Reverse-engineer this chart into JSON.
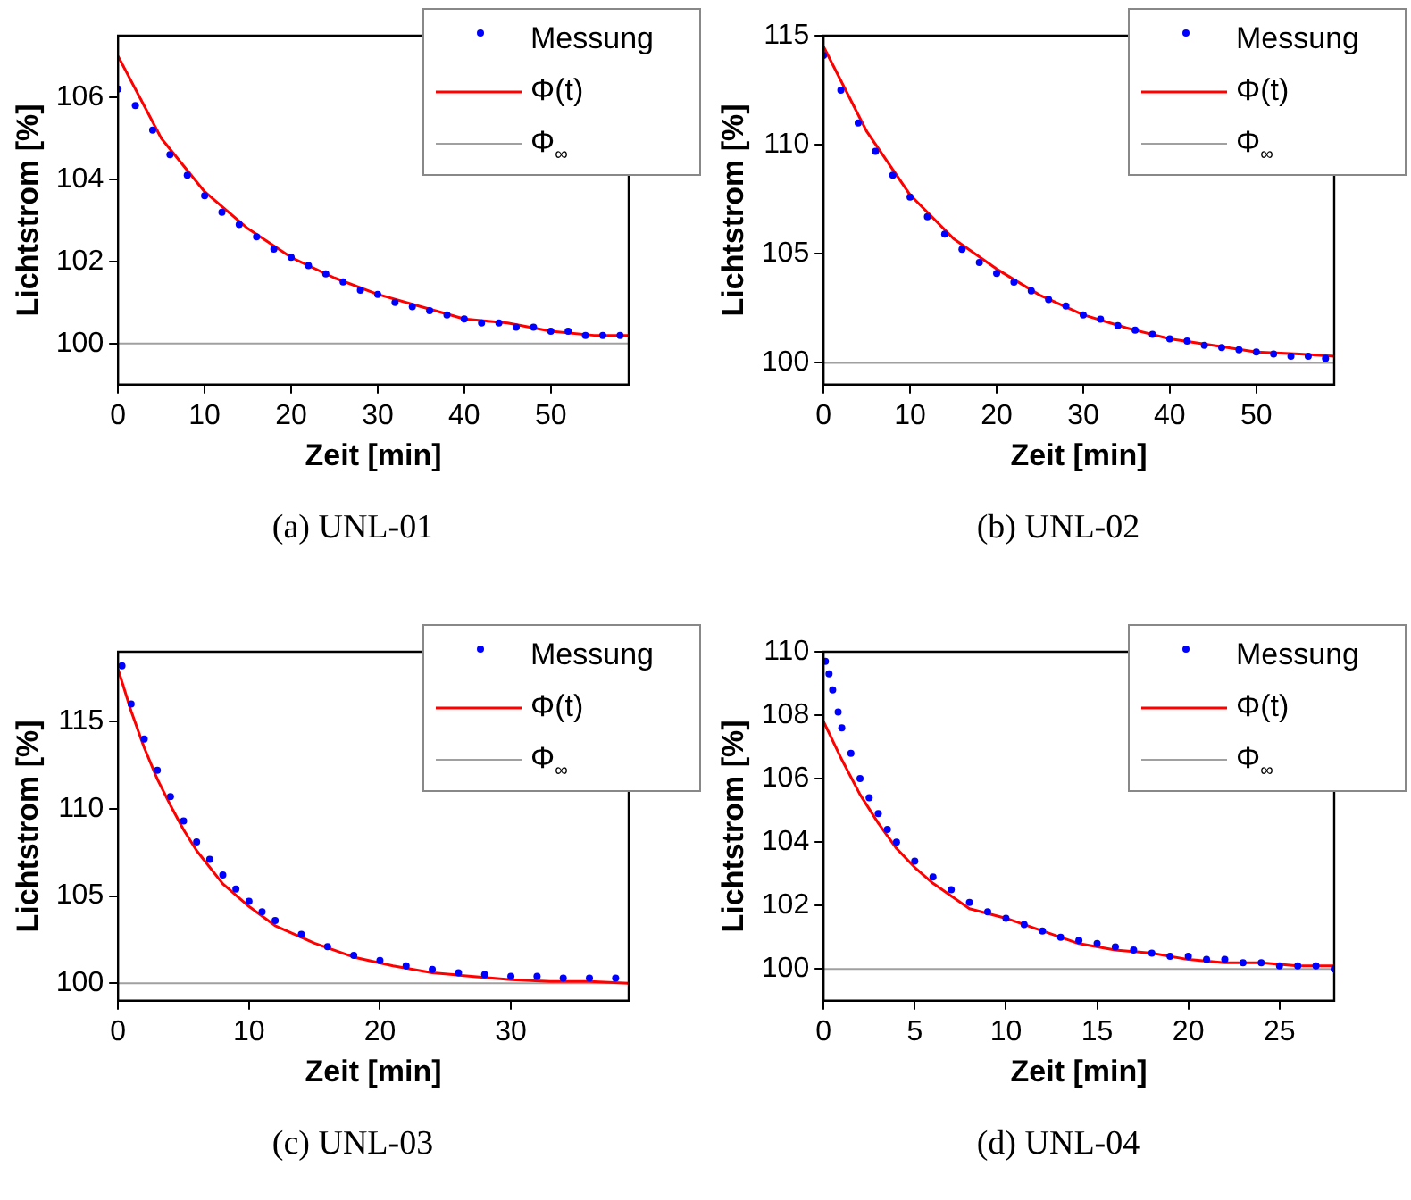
{
  "chart_data": [
    {
      "type": "scatter",
      "title": "(a) UNL-01",
      "xlabel": "Zeit [min]",
      "ylabel": "Lichtstrom [%]",
      "xlim": [
        0,
        59
      ],
      "xticks": [
        0,
        10,
        20,
        30,
        40,
        50
      ],
      "ylim": [
        99,
        107.5
      ],
      "yticks": [
        100,
        102,
        104,
        106
      ],
      "grid": false,
      "legend": "top right",
      "series": [
        {
          "name": "Messung",
          "type": "scatter",
          "marker": "circle",
          "color": "#0000ff",
          "x": [
            0,
            2,
            4,
            6,
            8,
            10,
            12,
            14,
            16,
            18,
            20,
            22,
            24,
            26,
            28,
            30,
            32,
            34,
            36,
            38,
            40,
            42,
            44,
            46,
            48,
            50,
            52,
            54,
            56,
            58
          ],
          "values": [
            106.2,
            105.8,
            105.2,
            104.6,
            104.1,
            103.6,
            103.2,
            102.9,
            102.6,
            102.3,
            102.1,
            101.9,
            101.7,
            101.5,
            101.3,
            101.2,
            101.0,
            100.9,
            100.8,
            100.7,
            100.6,
            100.5,
            100.5,
            100.4,
            100.4,
            100.3,
            100.3,
            100.2,
            100.2,
            100.2
          ]
        },
        {
          "name": "Φ(t)",
          "type": "line",
          "marker": "none",
          "color": "#ff0000",
          "x": [
            0,
            5,
            10,
            15,
            20,
            25,
            30,
            35,
            40,
            45,
            50,
            55,
            59
          ],
          "values": [
            107.0,
            105.0,
            103.7,
            102.8,
            102.1,
            101.6,
            101.2,
            100.9,
            100.6,
            100.5,
            100.3,
            100.2,
            100.2
          ]
        }
      ],
      "ref_lines": [
        {
          "axis": "y",
          "value": 100,
          "label": "Φ$_{∞}$",
          "color": "#a0a0a0"
        }
      ]
    },
    {
      "type": "scatter",
      "title": "(b) UNL-02",
      "xlabel": "Zeit [min]",
      "ylabel": "Lichtstrom [%]",
      "xlim": [
        0,
        59
      ],
      "xticks": [
        0,
        10,
        20,
        30,
        40,
        50
      ],
      "ylim": [
        99,
        115
      ],
      "yticks": [
        100,
        105,
        110,
        115
      ],
      "grid": false,
      "legend": "top right",
      "series": [
        {
          "name": "Messung",
          "type": "scatter",
          "marker": "circle",
          "color": "#0000ff",
          "x": [
            0,
            2,
            4,
            6,
            8,
            10,
            12,
            14,
            16,
            18,
            20,
            22,
            24,
            26,
            28,
            30,
            32,
            34,
            36,
            38,
            40,
            42,
            44,
            46,
            48,
            50,
            52,
            54,
            56,
            58
          ],
          "values": [
            114.1,
            112.5,
            111.0,
            109.7,
            108.6,
            107.6,
            106.7,
            105.9,
            105.2,
            104.6,
            104.1,
            103.7,
            103.3,
            102.9,
            102.6,
            102.2,
            102.0,
            101.7,
            101.5,
            101.3,
            101.1,
            101.0,
            100.8,
            100.7,
            100.6,
            100.5,
            100.4,
            100.3,
            100.3,
            100.2
          ]
        },
        {
          "name": "Φ(t)",
          "type": "line",
          "marker": "none",
          "color": "#ff0000",
          "x": [
            0,
            5,
            10,
            15,
            20,
            25,
            30,
            35,
            40,
            45,
            50,
            55,
            59
          ],
          "values": [
            114.5,
            110.6,
            107.7,
            105.7,
            104.3,
            103.1,
            102.2,
            101.6,
            101.1,
            100.8,
            100.5,
            100.4,
            100.3
          ]
        }
      ],
      "ref_lines": [
        {
          "axis": "y",
          "value": 100,
          "label": "Φ$_{∞}$",
          "color": "#a0a0a0"
        }
      ]
    },
    {
      "type": "scatter",
      "title": "(c) UNL-03",
      "xlabel": "Zeit [min]",
      "ylabel": "Lichtstrom [%]",
      "xlim": [
        0,
        39
      ],
      "xticks": [
        0,
        10,
        20,
        30
      ],
      "ylim": [
        99,
        119
      ],
      "yticks": [
        100,
        105,
        110,
        115
      ],
      "grid": false,
      "legend": "top right",
      "series": [
        {
          "name": "Messung",
          "type": "scatter",
          "marker": "circle",
          "color": "#0000ff",
          "x": [
            0.3,
            1,
            2,
            3,
            4,
            5,
            6,
            7,
            8,
            9,
            10,
            11,
            12,
            14,
            16,
            18,
            20,
            22,
            24,
            26,
            28,
            30,
            32,
            34,
            36,
            38
          ],
          "values": [
            118.2,
            116.0,
            114.0,
            112.2,
            110.7,
            109.3,
            108.1,
            107.1,
            106.2,
            105.4,
            104.7,
            104.1,
            103.6,
            102.8,
            102.1,
            101.6,
            101.3,
            101.0,
            100.8,
            100.6,
            100.5,
            100.4,
            100.4,
            100.3,
            100.3,
            100.3
          ]
        },
        {
          "name": "Φ(t)",
          "type": "line",
          "marker": "none",
          "color": "#ff0000",
          "x": [
            0,
            1,
            2,
            3,
            4,
            5,
            6,
            8,
            10,
            12,
            15,
            18,
            21,
            24,
            27,
            30,
            33,
            36,
            39
          ],
          "values": [
            118.0,
            115.6,
            113.5,
            111.7,
            110.2,
            108.8,
            107.6,
            105.7,
            104.4,
            103.3,
            102.3,
            101.5,
            101.0,
            100.6,
            100.4,
            100.2,
            100.1,
            100.1,
            100.0
          ]
        }
      ],
      "ref_lines": [
        {
          "axis": "y",
          "value": 100,
          "label": "Φ$_{∞}$",
          "color": "#a0a0a0"
        }
      ]
    },
    {
      "type": "scatter",
      "title": "(d) UNL-04",
      "xlabel": "Zeit [min]",
      "ylabel": "Lichtstrom [%]",
      "xlim": [
        0,
        28
      ],
      "xticks": [
        0,
        5,
        10,
        15,
        20,
        25
      ],
      "ylim": [
        99,
        110
      ],
      "yticks": [
        100,
        102,
        104,
        106,
        108,
        110
      ],
      "grid": false,
      "legend": "top right",
      "series": [
        {
          "name": "Messung",
          "type": "scatter",
          "marker": "circle",
          "color": "#0000ff",
          "x": [
            0.1,
            0.3,
            0.5,
            0.8,
            1,
            1.5,
            2,
            2.5,
            3,
            3.5,
            4,
            5,
            6,
            7,
            8,
            9,
            10,
            11,
            12,
            13,
            14,
            15,
            16,
            17,
            18,
            19,
            20,
            21,
            22,
            23,
            24,
            25,
            26,
            27,
            28
          ],
          "values": [
            109.7,
            109.3,
            108.8,
            108.1,
            107.6,
            106.8,
            106.0,
            105.4,
            104.9,
            104.4,
            104.0,
            103.4,
            102.9,
            102.5,
            102.1,
            101.8,
            101.6,
            101.4,
            101.2,
            101.0,
            100.9,
            100.8,
            100.7,
            100.6,
            100.5,
            100.4,
            100.4,
            100.3,
            100.3,
            100.2,
            100.2,
            100.1,
            100.1,
            100.1,
            100.0
          ]
        },
        {
          "name": "Φ(t)",
          "type": "line",
          "marker": "none",
          "color": "#ff0000",
          "x": [
            0,
            1,
            2,
            3,
            4,
            5,
            6,
            8,
            10,
            12,
            14,
            16,
            18,
            20,
            22,
            24,
            26,
            28
          ],
          "values": [
            107.8,
            106.6,
            105.5,
            104.6,
            103.8,
            103.2,
            102.7,
            101.9,
            101.6,
            101.2,
            100.8,
            100.6,
            100.5,
            100.3,
            100.2,
            100.2,
            100.1,
            100.1
          ]
        }
      ],
      "ref_lines": [
        {
          "axis": "y",
          "value": 100,
          "label": "Φ$_{∞}$",
          "color": "#a0a0a0"
        }
      ]
    }
  ]
}
